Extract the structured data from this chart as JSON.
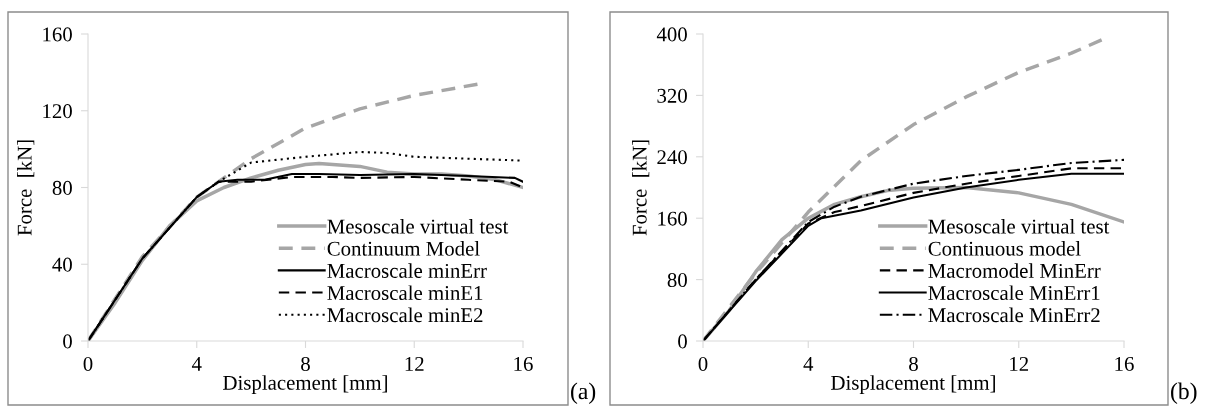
{
  "chart_data": [
    {
      "type": "line",
      "xlabel": "Displacement [mm]",
      "ylabel": "Force  [kN]",
      "xlim": [
        0,
        16
      ],
      "xticks": [
        0,
        4,
        8,
        12,
        16
      ],
      "ylim": [
        0,
        160
      ],
      "yticks": [
        0,
        40,
        80,
        120,
        160
      ],
      "grid": false,
      "legend": "bottom right",
      "annotations": [
        "(a)"
      ],
      "series": [
        {
          "name": "Mesoscale virtual test",
          "color": "#a6a6a6",
          "line_style": "solid",
          "x": [
            0,
            1,
            2,
            3,
            4,
            5,
            6,
            7,
            8,
            8.5,
            10,
            11,
            12,
            13,
            14,
            15,
            16
          ],
          "values": [
            0,
            20,
            42,
            60,
            73,
            80,
            85,
            89,
            92,
            92.5,
            91,
            88,
            87,
            87,
            86,
            84,
            80
          ]
        },
        {
          "name": "Continuum Model",
          "color": "#a6a6a6",
          "line_style": "dashed",
          "x": [
            0,
            2,
            4,
            5,
            6,
            8,
            10,
            12,
            14.4
          ],
          "values": [
            0,
            44,
            75,
            85,
            95,
            111,
            121,
            128,
            134
          ]
        },
        {
          "name": "Macroscale minErr",
          "color": "#000000",
          "line_style": "solid",
          "x": [
            0,
            2,
            4,
            4.8,
            5.5,
            6.5,
            7.5,
            8.5,
            10,
            12,
            14,
            15.7,
            16
          ],
          "values": [
            0,
            43,
            75,
            83,
            84,
            84,
            87,
            87,
            86.5,
            87,
            86,
            85,
            83
          ]
        },
        {
          "name": "Macroscale minE1",
          "color": "#000000",
          "line_style": "dashed",
          "x": [
            0,
            2,
            4,
            4.8,
            6,
            7.5,
            9,
            10,
            12,
            14,
            15.5,
            16
          ],
          "values": [
            0,
            43,
            75,
            83,
            83,
            85.5,
            85.5,
            85,
            85.5,
            84,
            83,
            80
          ]
        },
        {
          "name": "Macroscale minE2",
          "color": "#000000",
          "line_style": "dotted",
          "x": [
            0,
            2,
            4,
            4.8,
            6,
            8,
            10,
            11,
            12,
            14,
            16
          ],
          "values": [
            0,
            43,
            75,
            83,
            93,
            96,
            98.5,
            98,
            96,
            95,
            94
          ]
        }
      ]
    },
    {
      "type": "line",
      "xlabel": "Displacement [mm]",
      "ylabel": "Force  [kN]",
      "xlim": [
        0,
        16
      ],
      "xticks": [
        0,
        4,
        8,
        12,
        16
      ],
      "ylim": [
        0,
        400
      ],
      "yticks": [
        0,
        80,
        160,
        240,
        320,
        400
      ],
      "grid": false,
      "legend": "bottom right",
      "annotations": [
        "(b)"
      ],
      "series": [
        {
          "name": "Mesoscale virtual test",
          "color": "#a6a6a6",
          "line_style": "solid",
          "x": [
            0,
            1,
            2,
            3,
            4,
            5,
            6,
            7,
            8,
            10,
            12,
            14,
            16
          ],
          "values": [
            0,
            40,
            90,
            132,
            160,
            178,
            188,
            196,
            199,
            200,
            193,
            178,
            155
          ]
        },
        {
          "name": "Continuous model",
          "color": "#a6a6a6",
          "line_style": "dashed",
          "x": [
            0,
            2,
            4,
            6,
            8,
            10,
            12,
            14,
            15.2
          ],
          "values": [
            0,
            88,
            168,
            235,
            282,
            318,
            350,
            375,
            393
          ]
        },
        {
          "name": "Macromodel MinErr",
          "color": "#000000",
          "line_style": "dashed",
          "x": [
            0,
            2,
            4,
            5,
            6,
            8,
            10,
            12,
            14,
            16
          ],
          "values": [
            0,
            80,
            153,
            168,
            176,
            193,
            205,
            215,
            225,
            225
          ]
        },
        {
          "name": "Macroscale MinErr1",
          "color": "#000000",
          "line_style": "solid",
          "x": [
            0,
            2,
            4,
            4.5,
            6,
            8,
            10,
            12,
            14,
            16
          ],
          "values": [
            0,
            78,
            150,
            160,
            170,
            187,
            200,
            210,
            218,
            218
          ]
        },
        {
          "name": "Macroscale MinErr2",
          "color": "#000000",
          "line_style": "dashdot",
          "x": [
            0,
            2,
            4,
            5,
            6,
            8,
            10,
            12,
            14,
            16
          ],
          "values": [
            0,
            80,
            155,
            175,
            188,
            205,
            215,
            223,
            232,
            236
          ]
        }
      ]
    }
  ]
}
